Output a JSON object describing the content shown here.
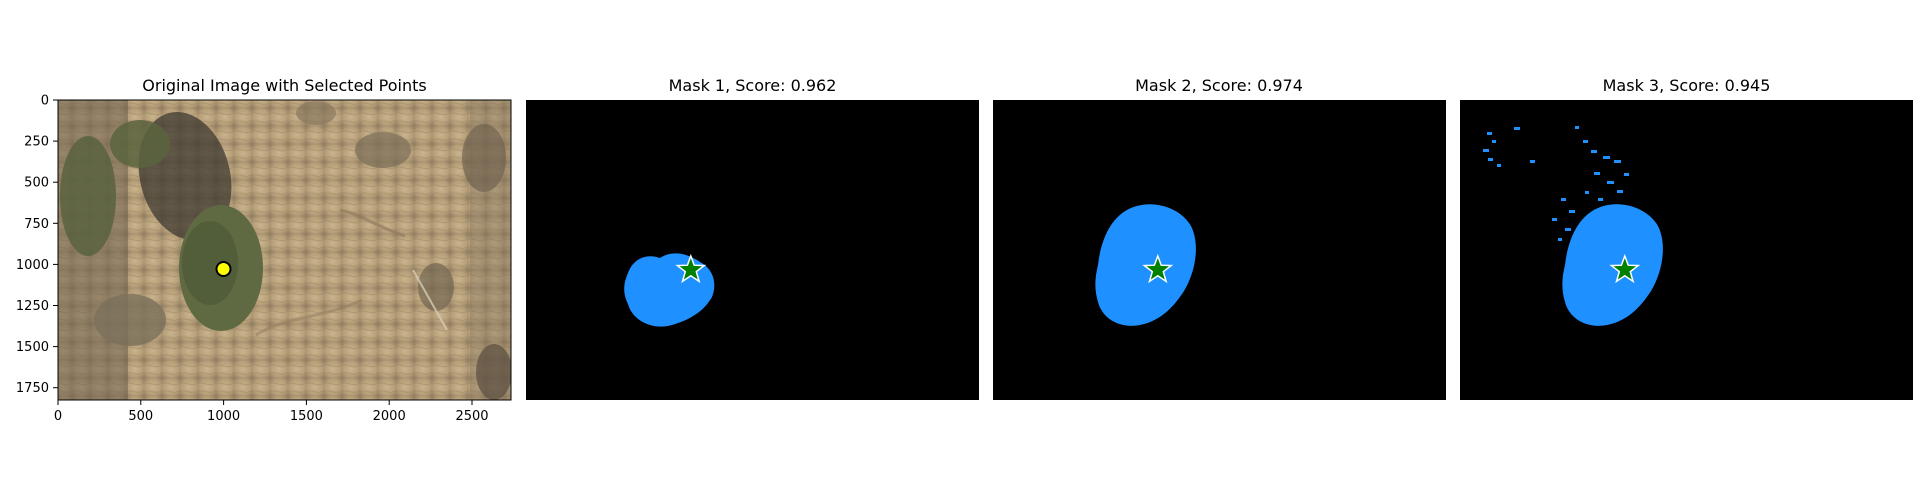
{
  "figure": {
    "panels": [
      {
        "title": "Original Image with Selected Points",
        "kind": "photo",
        "x_ticks": [
          "0",
          "500",
          "1000",
          "1500",
          "2000",
          "2500"
        ],
        "y_ticks": [
          "0",
          "250",
          "500",
          "750",
          "1000",
          "1250",
          "1500",
          "1750"
        ],
        "point_marker": "yellow-circle",
        "point": {
          "x": 1000,
          "y": 1030
        },
        "image_extent": {
          "width": 2736,
          "height": 1824
        }
      },
      {
        "title": "Mask 1, Score: 0.962",
        "kind": "mask",
        "score": 0.962,
        "point_marker": "green-star",
        "mask_color": "#1e90ff"
      },
      {
        "title": "Mask 2, Score: 0.974",
        "kind": "mask",
        "score": 0.974,
        "point_marker": "green-star",
        "mask_color": "#1e90ff"
      },
      {
        "title": "Mask 3, Score: 0.945",
        "kind": "mask",
        "score": 0.945,
        "point_marker": "green-star",
        "mask_color": "#1e90ff"
      }
    ]
  }
}
